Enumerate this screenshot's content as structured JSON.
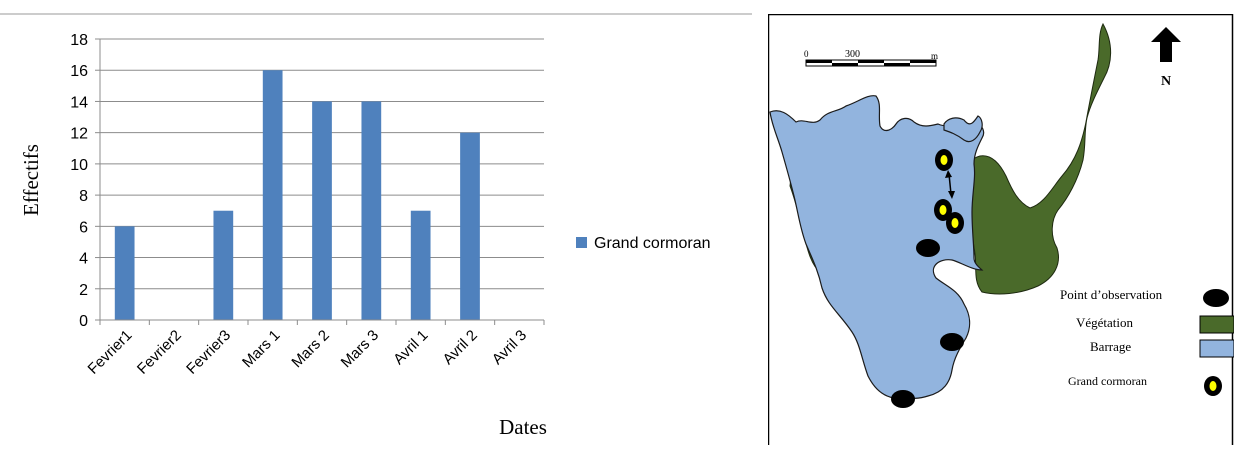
{
  "chart_data": {
    "type": "bar",
    "categories": [
      "Fevrier1",
      "Fevrier2",
      "Fevrier3",
      "Mars 1",
      "Mars 2",
      "Mars 3",
      "Avril 1",
      "Avril 2",
      "Avril 3"
    ],
    "series": [
      {
        "name": "Grand cormoran",
        "values": [
          6,
          0,
          7,
          16,
          14,
          14,
          7,
          12,
          0
        ],
        "color": "#4f81bd"
      }
    ],
    "xlabel": "Dates",
    "ylabel": "Effectifs",
    "ylim": [
      0,
      18
    ],
    "yticks": [
      0,
      2,
      4,
      6,
      8,
      10,
      12,
      14,
      16,
      18
    ],
    "grid": true,
    "legend_position": "right"
  },
  "map": {
    "scale_start": "0",
    "scale_mid": "300",
    "scale_unit": "m",
    "north_label": "N",
    "legend": [
      {
        "label": "Point d’observation",
        "symbol": "observation-point",
        "color": "#000000"
      },
      {
        "label": "Végétation",
        "symbol": "vegetation",
        "color": "#4a6a2a"
      },
      {
        "label": "Barrage",
        "symbol": "water",
        "color": "#92b4de"
      },
      {
        "label": "Grand cormoran",
        "symbol": "cormorant",
        "color": "#ffff00"
      }
    ]
  }
}
